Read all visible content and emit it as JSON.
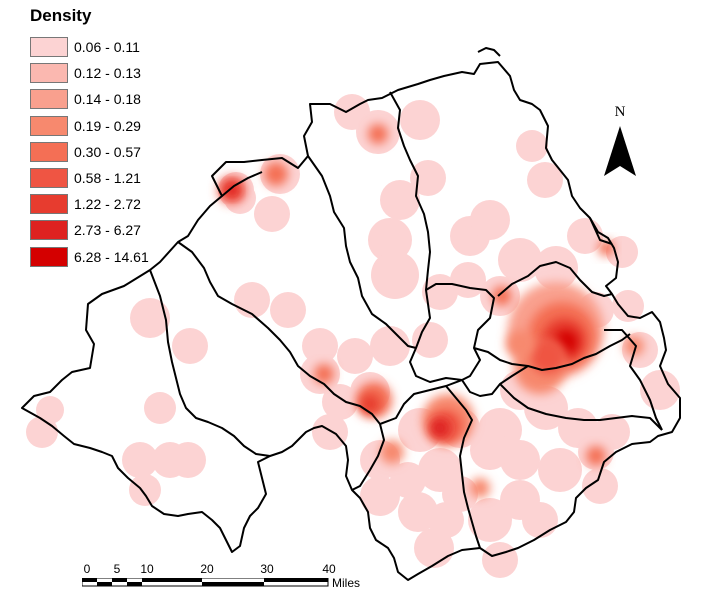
{
  "legend": {
    "title": "Density",
    "classes": [
      {
        "label": "0.06 - 0.11",
        "color": "#fcd3d3"
      },
      {
        "label": "0.12 - 0.13",
        "color": "#fbb8b0"
      },
      {
        "label": "0.14 - 0.18",
        "color": "#f9a08e"
      },
      {
        "label": "0.19 - 0.29",
        "color": "#f7896e"
      },
      {
        "label": "0.30 - 0.57",
        "color": "#f46f55"
      },
      {
        "label": "0.58 - 1.21",
        "color": "#ef5543"
      },
      {
        "label": "1.22 - 2.72",
        "color": "#e73c2f"
      },
      {
        "label": "2.73 - 6.27",
        "color": "#de2220"
      },
      {
        "label": "6.28 - 14.61",
        "color": "#d40000"
      }
    ]
  },
  "north_arrow": {
    "label": "N"
  },
  "scale_bar": {
    "ticks": [
      "0",
      "5",
      "10",
      "20",
      "30",
      "40"
    ],
    "unit": "Miles"
  }
}
